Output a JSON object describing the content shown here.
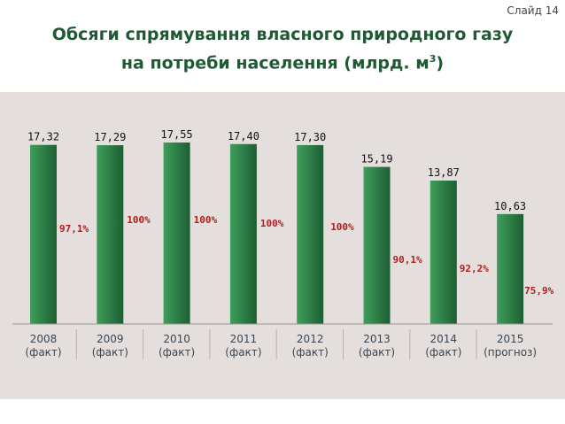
{
  "slide_label": "Слайд 14",
  "title_line1": "Обсяги спрямування власного природного газу",
  "title_line2": "на потреби населення (млрд. м",
  "title_sup": "3",
  "title_close": ")",
  "colors": {
    "bar_light": "#3f9e5a",
    "bar_dark": "#1c5e33",
    "percent": "#b01e1e",
    "title": "#1f5a35",
    "panel": "#e4dfdc"
  },
  "chart_data": {
    "type": "bar",
    "categories": [
      "2008",
      "2009",
      "2010",
      "2011",
      "2012",
      "2013",
      "2014",
      "2015"
    ],
    "category_notes": [
      "(факт)",
      "(факт)",
      "(факт)",
      "(факт)",
      "(факт)",
      "(факт)",
      "(факт)",
      "(прогноз)"
    ],
    "values": [
      17.32,
      17.29,
      17.55,
      17.4,
      17.3,
      15.19,
      13.87,
      10.63
    ],
    "value_labels": [
      "17,32",
      "17,29",
      "17,55",
      "17,40",
      "17,30",
      "15,19",
      "13,87",
      "10,63"
    ],
    "percent_labels": [
      "97,1%",
      "100%",
      "100%",
      "100%",
      "100%",
      "90,1%",
      "92,2%",
      "75,9%"
    ],
    "percent_values": [
      97.1,
      100,
      100,
      100,
      100,
      90.1,
      92.2,
      75.9
    ],
    "title": "Обсяги спрямування власного природного газу на потреби населення (млрд. м3)",
    "xlabel": "",
    "ylabel": "",
    "ylim": [
      0,
      17.55
    ],
    "grid": false
  }
}
